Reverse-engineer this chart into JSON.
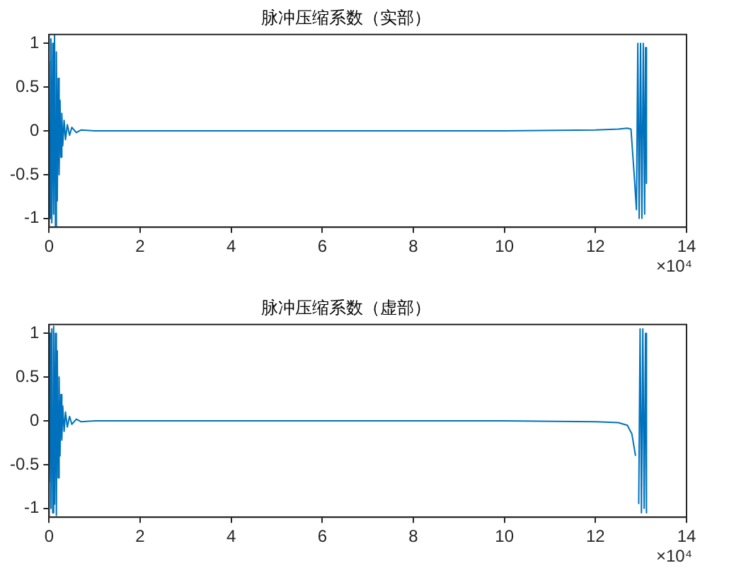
{
  "chart_data": [
    {
      "type": "line",
      "title": "脉冲压缩系数（实部）",
      "marker": "none",
      "line_style": "solid",
      "x": [
        0,
        0.02,
        0.04,
        0.06,
        0.08,
        0.1,
        0.12,
        0.14,
        0.16,
        0.18,
        0.2,
        0.22,
        0.24,
        0.26,
        0.28,
        0.3,
        0.33,
        0.36,
        0.4,
        0.45,
        0.5,
        0.6,
        0.7,
        1,
        3,
        6,
        10,
        12,
        12.5,
        12.7,
        12.78,
        12.85,
        12.9,
        12.93,
        12.96,
        12.99,
        13.02,
        13.05,
        13.08,
        13.1,
        13.12
      ],
      "series": [
        {
          "color": "#0072bd",
          "values": [
            0.8,
            -1.0,
            1.05,
            -1.05,
            1.0,
            -0.95,
            1.1,
            -1.1,
            0.9,
            -0.8,
            0.6,
            -0.5,
            0.35,
            -0.3,
            0.2,
            -0.17,
            0.12,
            -0.1,
            0.07,
            -0.05,
            0.04,
            -0.02,
            0.01,
            0,
            0,
            0,
            0,
            0.01,
            0.02,
            0.03,
            0.02,
            -0.5,
            -0.9,
            1.0,
            -1.0,
            1.0,
            -1.0,
            1.0,
            -0.95,
            0.95,
            -0.6
          ]
        }
      ],
      "xlim": [
        0,
        14
      ],
      "xticks": [
        0,
        2,
        4,
        6,
        8,
        10,
        12,
        14
      ],
      "ylim": [
        -1.1,
        1.1
      ],
      "yticks": [
        -1,
        -0.5,
        0,
        0.5,
        1
      ],
      "annotations": [
        "×10⁴"
      ]
    },
    {
      "type": "line",
      "title": "脉冲压缩系数（虚部）",
      "marker": "none",
      "line_style": "solid",
      "x": [
        0,
        0.02,
        0.04,
        0.06,
        0.08,
        0.1,
        0.12,
        0.14,
        0.16,
        0.18,
        0.2,
        0.22,
        0.24,
        0.26,
        0.28,
        0.3,
        0.33,
        0.36,
        0.4,
        0.45,
        0.5,
        0.6,
        0.7,
        1,
        3,
        6,
        10,
        12,
        12.5,
        12.7,
        12.8,
        12.88,
        12.92,
        12.95,
        12.98,
        13.01,
        13.04,
        13.07,
        13.1,
        13.12
      ],
      "series": [
        {
          "color": "#0072bd",
          "values": [
            -0.7,
            1.0,
            -1.0,
            1.05,
            -1.05,
            1.08,
            -0.95,
            1.0,
            -1.08,
            0.8,
            -0.65,
            0.5,
            -0.4,
            0.3,
            -0.22,
            0.17,
            -0.12,
            0.1,
            -0.07,
            0.05,
            -0.04,
            0.02,
            -0.01,
            0,
            0,
            0,
            0,
            -0.01,
            -0.02,
            -0.05,
            -0.15,
            -0.4,
            null,
            -0.95,
            1.05,
            -1.05,
            1.05,
            -1.0,
            1.0,
            -1.05
          ]
        }
      ],
      "xlim": [
        0,
        14
      ],
      "xticks": [
        0,
        2,
        4,
        6,
        8,
        10,
        12,
        14
      ],
      "ylim": [
        -1.1,
        1.1
      ],
      "yticks": [
        -1,
        -0.5,
        0,
        0.5,
        1
      ],
      "annotations": [
        "×10⁴"
      ]
    }
  ]
}
